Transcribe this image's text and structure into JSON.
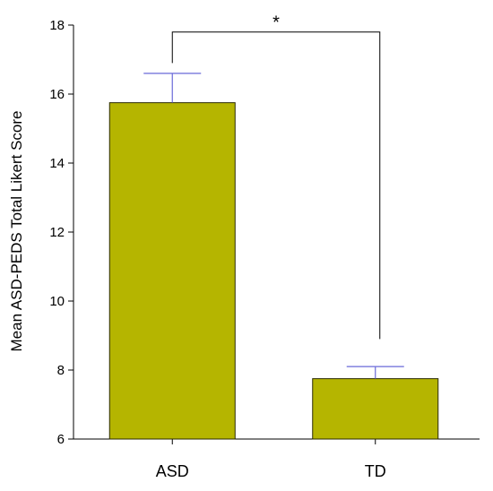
{
  "chart_data": {
    "type": "bar",
    "title": "",
    "xlabel": "",
    "ylabel": "Mean ASD-PEDS Total Likert Score",
    "categories": [
      "ASD",
      "TD"
    ],
    "values": [
      15.75,
      7.75
    ],
    "error_upper": [
      16.6,
      8.1
    ],
    "ylim": [
      6,
      18
    ],
    "yticks": [
      6,
      8,
      10,
      12,
      14,
      16,
      18
    ],
    "grid": false,
    "legend": "none",
    "significance": {
      "between": [
        "ASD",
        "TD"
      ],
      "label": "*",
      "bracket_top": 17.8,
      "bracket_ends": [
        16.9,
        8.9
      ]
    },
    "colors": {
      "bar": "#b5b500",
      "bar_edge": "#2a2a00",
      "error_bar": "#6a6ad8",
      "axis": "#000000"
    }
  }
}
